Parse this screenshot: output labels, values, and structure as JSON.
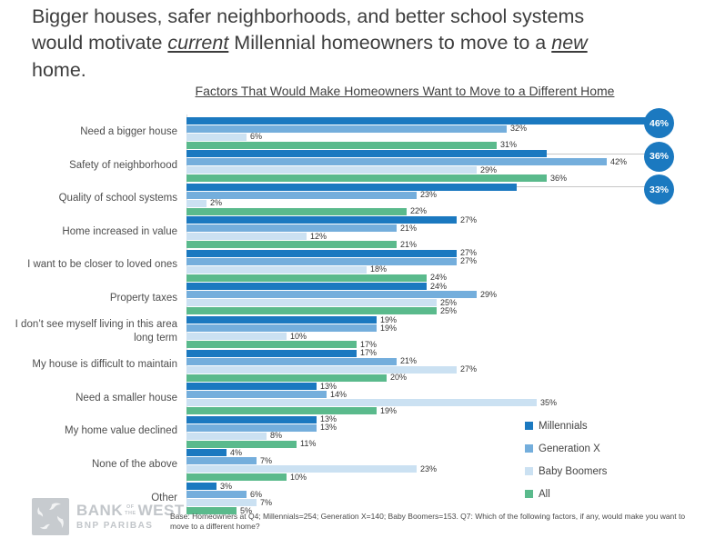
{
  "heading": {
    "line1": "Bigger houses, safer neighborhoods, and better school systems",
    "line2_pre": "would motivate ",
    "line2_em1": "current",
    "line2_mid": " Millennial homeowners to move to a ",
    "line2_em2": "new",
    "line3": "home."
  },
  "chart_data": {
    "type": "bar",
    "orientation": "horizontal",
    "title": "Factors That Would Make Homeowners Want to Move to a Different Home",
    "unit": "%",
    "xlim": [
      0,
      50
    ],
    "grid": false,
    "legend_position": "bottom-right",
    "series": [
      {
        "name": "Millennials",
        "color": "#1b79c0"
      },
      {
        "name": "Generation X",
        "color": "#74aedc"
      },
      {
        "name": "Baby Boomers",
        "color": "#cbe1f2"
      },
      {
        "name": "All",
        "color": "#5aba8c"
      }
    ],
    "callout_color": "#1b79c0",
    "rows": [
      {
        "category": "Need a bigger house",
        "values": [
          46,
          32,
          6,
          31
        ],
        "callout": true
      },
      {
        "category": "Safety of neighborhood",
        "values": [
          36,
          42,
          29,
          36
        ],
        "callout": true
      },
      {
        "category": "Quality of school systems",
        "values": [
          33,
          23,
          2,
          22
        ],
        "callout": true
      },
      {
        "category": "Home increased in value",
        "values": [
          27,
          21,
          12,
          21
        ],
        "callout": false
      },
      {
        "category": "I want to be closer to loved ones",
        "values": [
          27,
          27,
          18,
          24
        ],
        "callout": false
      },
      {
        "category": "Property taxes",
        "values": [
          24,
          29,
          25,
          25
        ],
        "callout": false
      },
      {
        "category": "I don’t see myself living in this area long term",
        "values": [
          19,
          19,
          10,
          17
        ],
        "callout": false
      },
      {
        "category": "My house is difficult to maintain",
        "values": [
          17,
          21,
          27,
          20
        ],
        "callout": false
      },
      {
        "category": "Need a smaller house",
        "values": [
          13,
          14,
          35,
          19
        ],
        "callout": false
      },
      {
        "category": "My home value declined",
        "values": [
          13,
          13,
          8,
          11
        ],
        "callout": false
      },
      {
        "category": "None of the above",
        "values": [
          4,
          7,
          23,
          10
        ],
        "callout": false
      },
      {
        "category": "Other",
        "values": [
          3,
          6,
          7,
          5
        ],
        "callout": false
      }
    ]
  },
  "footer": {
    "logo": {
      "bank": "BANK",
      "of": "OF",
      "the": "THE",
      "west": "WEST",
      "bnp": "BNP PARIBAS"
    },
    "base_note": "Base: Homeowners at Q4; Millennials=254; Generation X=140; Baby Boomers=153. Q7: Which of the following factors, if any, would make you want to move to a different home?"
  }
}
